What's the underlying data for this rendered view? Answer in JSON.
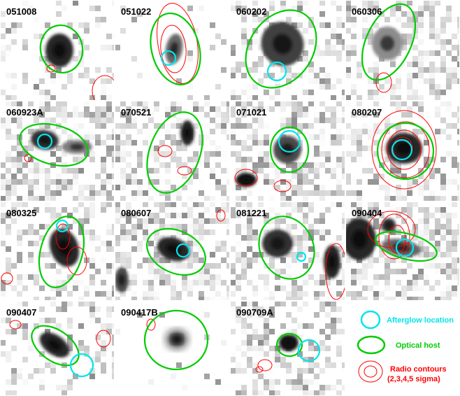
{
  "panels": [
    {
      "label": "051008"
    },
    {
      "label": "051022"
    },
    {
      "label": "060202"
    },
    {
      "label": "060306"
    },
    {
      "label": "060923A"
    },
    {
      "label": "070521"
    },
    {
      "label": "071021"
    },
    {
      "label": "080207"
    },
    {
      "label": "080325"
    },
    {
      "label": "080607"
    },
    {
      "label": "081221"
    },
    {
      "label": "090404"
    },
    {
      "label": "090407"
    },
    {
      "label": "090417B"
    },
    {
      "label": "090709A"
    }
  ],
  "legend": {
    "afterglow": {
      "label": "Afterglow location",
      "color": "#00e5ee"
    },
    "host": {
      "label": "Optical host",
      "color": "#00cc00"
    },
    "radio": {
      "label1": "Radio contours",
      "label2": "(2,3,4,5 sigma)",
      "color": "#ff0000"
    }
  }
}
